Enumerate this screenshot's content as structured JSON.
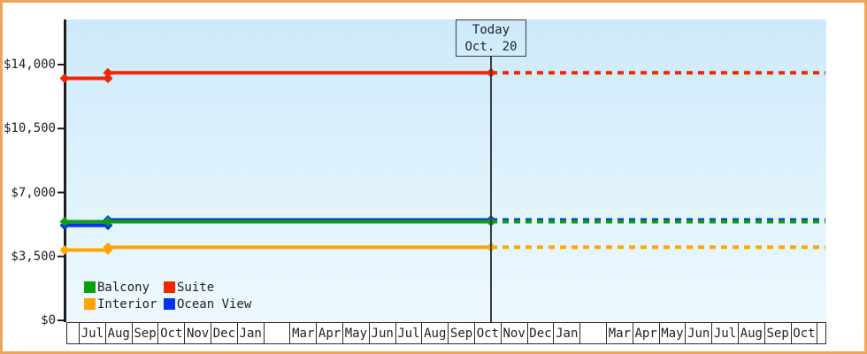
{
  "window": {
    "frame_border_color": "#e9a65c",
    "background_color": "#ffffff",
    "plot_background_top": "#cdeafa",
    "plot_background_bottom": "#eef9fe"
  },
  "today": {
    "line1": "Today",
    "line2": "Oct. 20"
  },
  "chart_data": {
    "type": "line",
    "title": "",
    "description": "Cruise cabin price history by category with dashed forecast after today marker",
    "grid": false,
    "legend_position": "bottom-left",
    "y_axis": {
      "ticks": [
        {
          "label": "$0",
          "value": 0
        },
        {
          "label": "$3,500",
          "value": 3500
        },
        {
          "label": "$7,000",
          "value": 7000
        },
        {
          "label": "$10,500",
          "value": 10500
        },
        {
          "label": "$14,000",
          "value": 14000
        }
      ],
      "min_value": 0,
      "max_value": 16470
    },
    "x_axis": {
      "cells": [
        "",
        "Jul",
        "Aug",
        "Sep",
        "Oct",
        "Nov",
        "Dec",
        "Jan",
        "",
        "Mar",
        "Apr",
        "May",
        "Jun",
        "Jul",
        "Aug",
        "Sep",
        "Oct",
        "Nov",
        "Dec",
        "Jan",
        "",
        "Mar",
        "Apr",
        "May",
        "Jun",
        "Jul",
        "Aug",
        "Sep",
        "Oct",
        ""
      ]
    },
    "today_marker": {
      "line1": "Today",
      "line2": "Oct. 20",
      "x_month": "Oct 20"
    },
    "series": [
      {
        "name": "Suite",
        "color": "#f52500",
        "values": {
          "jul": 13250,
          "aug": 13550,
          "today": 13550,
          "forecast": 13550
        }
      },
      {
        "name": "Interior",
        "color": "#ffa500",
        "values": {
          "jul": 3850,
          "aug": 4000,
          "today": 4000,
          "forecast": 4000
        }
      },
      {
        "name": "Ocean View",
        "color": "#0433f0",
        "values": {
          "jul": 5200,
          "aug": 5500,
          "today": 5500,
          "forecast": 5500
        }
      },
      {
        "name": "Balcony",
        "color": "#0ca00c",
        "values": {
          "jul": 5400,
          "aug": 5400,
          "today": 5400,
          "forecast": 5400
        }
      }
    ],
    "legend_order": [
      "Balcony",
      "Suite",
      "Interior",
      "Ocean View"
    ]
  }
}
